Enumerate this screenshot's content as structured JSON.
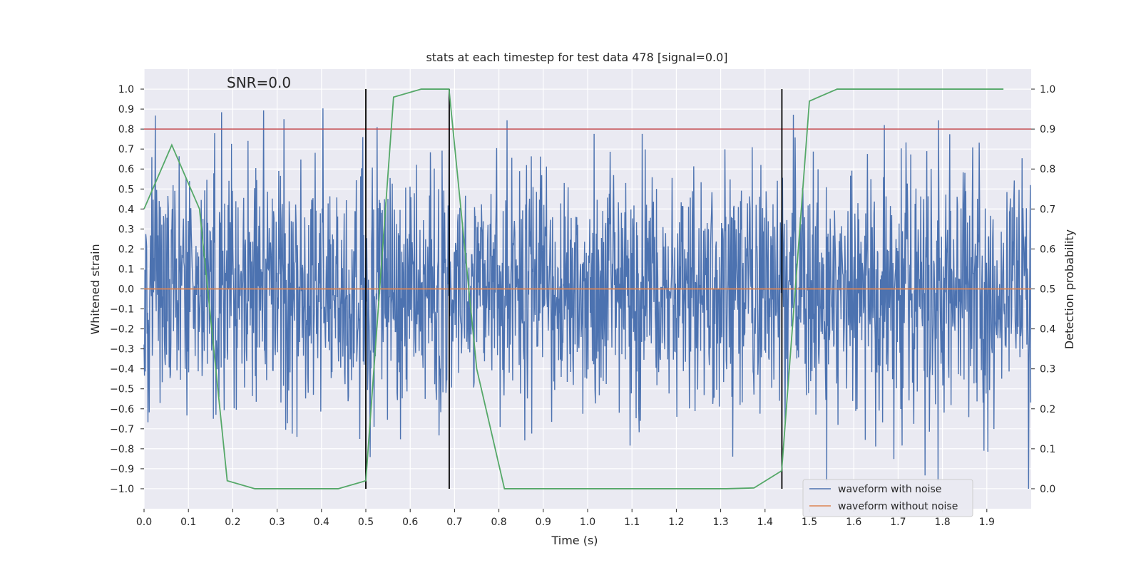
{
  "chart_data": {
    "type": "line",
    "title": "stats at each timestep for test data 478 [signal=0.0]",
    "xlabel": "Time (s)",
    "ylabel_left": "Whitened strain",
    "ylabel_right": "Detection probability",
    "annotation": "SNR=0.0",
    "xlim": [
      0.0,
      2.0
    ],
    "ylim_left": [
      -1.1,
      1.1
    ],
    "ylim_right": [
      -0.05,
      1.05
    ],
    "x_ticks": [
      "0.0",
      "0.1",
      "0.2",
      "0.3",
      "0.4",
      "0.5",
      "0.6",
      "0.7",
      "0.8",
      "0.9",
      "1.0",
      "1.1",
      "1.2",
      "1.3",
      "1.4",
      "1.5",
      "1.6",
      "1.7",
      "1.8",
      "1.9"
    ],
    "y_ticks_left": [
      "1.0",
      "0.9",
      "0.8",
      "0.7",
      "0.6",
      "0.5",
      "0.4",
      "0.3",
      "0.2",
      "0.1",
      "0.0",
      "−0.1",
      "−0.2",
      "−0.3",
      "−0.4",
      "−0.5",
      "−0.6",
      "−0.7",
      "−0.8",
      "−0.9",
      "−1.0"
    ],
    "y_ticks_right": [
      "1.0",
      "0.9",
      "0.8",
      "0.7",
      "0.6",
      "0.5",
      "0.4",
      "0.3",
      "0.2",
      "0.1",
      "0.0"
    ],
    "legend": {
      "position": "lower-right",
      "entries": [
        "waveform with noise",
        "waveform without noise"
      ]
    },
    "threshold_right": 0.9,
    "vertical_lines_x": [
      0.5,
      0.688,
      1.438
    ],
    "series": [
      {
        "name": "waveform with noise",
        "axis": "left",
        "color": "#4c72b0",
        "noise": {
          "samples": 2048,
          "seed": 478,
          "sigma": 0.32,
          "clip": 1.0
        }
      },
      {
        "name": "waveform without noise",
        "axis": "left",
        "color": "#dd8452",
        "x": [
          0.0,
          2.0
        ],
        "y": [
          0.0,
          0.0
        ]
      },
      {
        "name": "Detection probability",
        "axis": "right",
        "color": "#55a868",
        "x": [
          0.0,
          0.0625,
          0.125,
          0.1875,
          0.25,
          0.3125,
          0.375,
          0.4375,
          0.5,
          0.5625,
          0.625,
          0.6875,
          0.75,
          0.8125,
          0.875,
          0.9375,
          1.0,
          1.0625,
          1.125,
          1.1875,
          1.25,
          1.3125,
          1.375,
          1.4375,
          1.5,
          1.5625,
          1.625,
          1.6875,
          1.75,
          1.8125,
          1.875,
          1.9375
        ],
        "y": [
          0.7,
          0.86,
          0.7,
          0.02,
          0.0,
          0.0,
          0.0,
          0.0,
          0.02,
          0.98,
          1.0,
          1.0,
          0.3,
          0.0,
          0.0,
          0.0,
          0.0,
          0.0,
          0.0,
          0.0,
          0.0,
          0.0,
          0.002,
          0.045,
          0.97,
          1.0,
          1.0,
          1.0,
          1.0,
          1.0,
          1.0,
          1.0
        ]
      }
    ],
    "colors": {
      "background": "#eaeaf2",
      "grid": "#ffffff",
      "threshold": "#c44e52",
      "vline": "#000000"
    }
  }
}
